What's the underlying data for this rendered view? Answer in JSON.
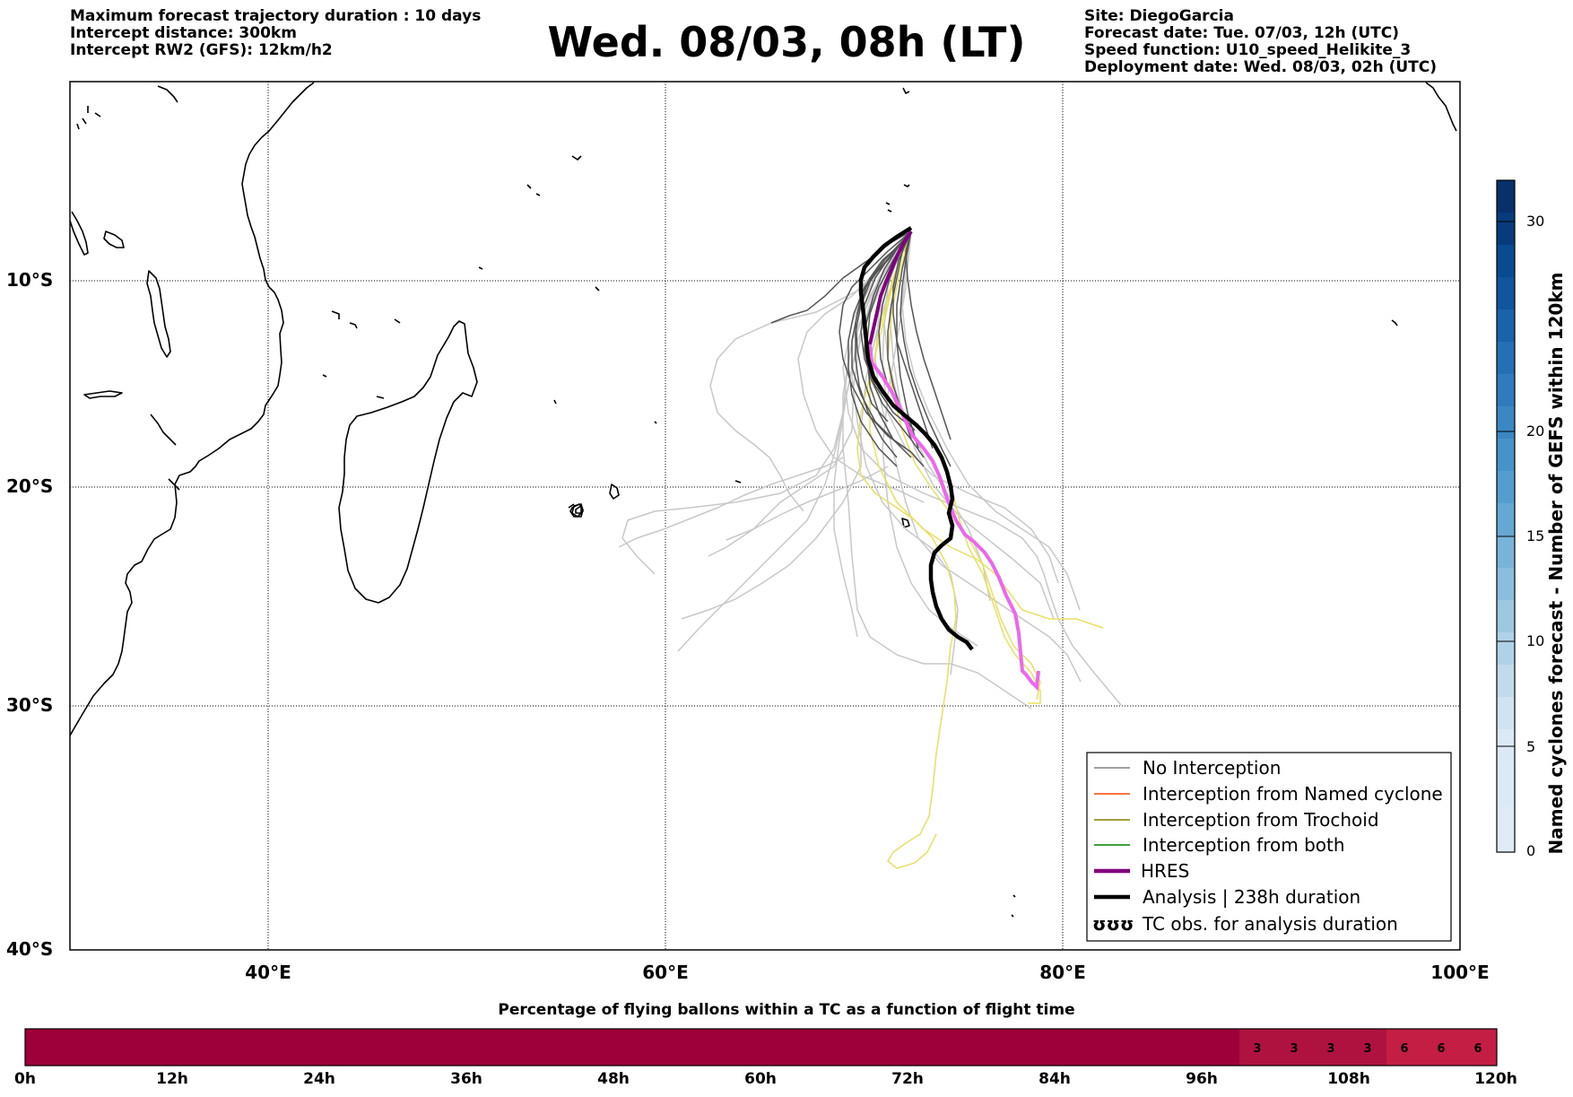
{
  "header": {
    "left": [
      "Maximum forecast trajectory duration : 10 days",
      "Intercept distance: 300km",
      "Intercept RW2 (GFS):  12km/h2"
    ],
    "title": "Wed. 08/03, 08h (LT)",
    "right": [
      "Site: DiegoGarcia",
      "Forecast date: Tue. 07/03, 12h (UTC)",
      "Speed function: U10_speed_Helikite_3",
      "Deployment date: Wed. 08/03, 02h (UTC)"
    ]
  },
  "map": {
    "lat_labels": [
      "10°S",
      "20°S",
      "30°S",
      "40°S"
    ],
    "lon_labels": [
      "40°E",
      "60°E",
      "80°E",
      "100°E"
    ]
  },
  "legend": {
    "items": [
      {
        "label": "No Interception",
        "color": "#808080",
        "style": "thin"
      },
      {
        "label": "Interception from Named cyclone",
        "color": "#ff4500",
        "style": "thin"
      },
      {
        "label": "Interception from Trochoid",
        "color": "#808000",
        "style": "thin"
      },
      {
        "label": "Interception from both",
        "color": "#008000",
        "style": "thin"
      },
      {
        "label": "HRES",
        "color": "#800080",
        "style": "thick"
      },
      {
        "label": "Analysis | 238h duration",
        "color": "#000000",
        "style": "thick"
      },
      {
        "label": "TC obs. for analysis duration",
        "color": "#000000",
        "style": "symbol",
        "symbol": "ʊʊʊ"
      }
    ]
  },
  "colorbar": {
    "label": "Named cyclones forecast - Number of GEFS within 120km",
    "ticks": [
      "0",
      "5",
      "10",
      "15",
      "20",
      "30"
    ]
  },
  "bottom_bar": {
    "title": "Percentage of flying ballons within a TC as a function of flight time",
    "hour_labels": [
      "0h",
      "12h",
      "24h",
      "36h",
      "48h",
      "60h",
      "72h",
      "84h",
      "96h",
      "108h",
      "120h"
    ],
    "cell_values": [
      "3",
      "3",
      "3",
      "3",
      "6",
      "6",
      "6"
    ]
  },
  "colors": {
    "ensemble_gray": "#555555",
    "ensemble_light": "#c8c8c8",
    "ensemble_yellow": "#e8e060",
    "hres": "#800080",
    "hres_light": "#ee66ee",
    "analysis": "#000000",
    "bar_base": "#9e003a",
    "bar_3": "#b0123f",
    "bar_6": "#c41e45"
  }
}
